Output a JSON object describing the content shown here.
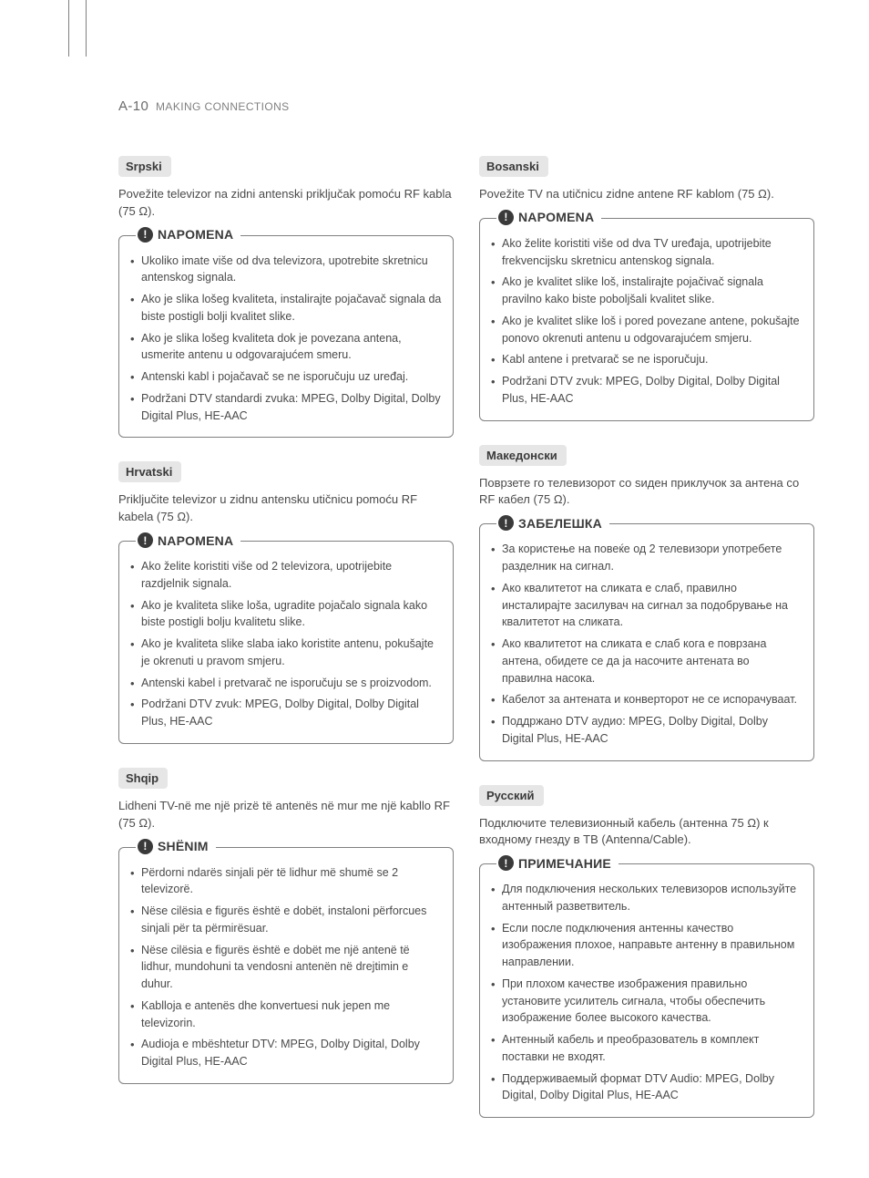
{
  "header": {
    "page_num": "A-10",
    "title": "MAKING CONNECTIONS"
  },
  "left": [
    {
      "lang": "Srpski",
      "intro": "Povežite televizor na zidni antenski priključak pomoću RF kabla (75 Ω).",
      "note_title": "NAPOMENA",
      "items": [
        "Ukoliko imate više od dva televizora, upotrebite skretnicu antenskog signala.",
        "Ako je slika lošeg kvaliteta, instalirajte pojačavač signala da biste postigli bolji kvalitet slike.",
        "Ako je slika lošeg kvaliteta dok je povezana antena, usmerite antenu u odgovarajućem smeru.",
        "Antenski kabl i pojačavač se ne isporučuju uz uređaj.",
        "Podržani DTV standardi zvuka: MPEG, Dolby Digital, Dolby Digital Plus, HE-AAC"
      ]
    },
    {
      "lang": "Hrvatski",
      "intro": "Priključite televizor u zidnu antensku utičnicu pomoću RF kabela (75 Ω).",
      "note_title": "NAPOMENA",
      "items": [
        "Ako želite koristiti više od 2 televizora, upotrijebite razdjelnik signala.",
        "Ako je kvaliteta slike loša, ugradite pojačalo signala kako biste postigli bolju kvalitetu slike.",
        "Ako je kvaliteta slike slaba iako koristite antenu, pokušajte je okrenuti u pravom smjeru.",
        "Antenski kabel i pretvarač ne isporučuju se s proizvodom.",
        "Podržani DTV zvuk: MPEG, Dolby Digital, Dolby Digital Plus, HE-AAC"
      ]
    },
    {
      "lang": "Shqip",
      "intro": "Lidheni TV-në me një prizë të antenës në mur me një kabllo RF (75 Ω).",
      "note_title": "SHËNIM",
      "items": [
        "Përdorni ndarës sinjali për të lidhur më shumë se 2 televizorë.",
        "Nëse cilësia e figurës është e dobët, instaloni përforcues sinjali për ta përmirësuar.",
        "Nëse cilësia e figurës është e dobët me një antenë të lidhur, mundohuni ta vendosni antenën në drejtimin e duhur.",
        "Kablloja e antenës dhe konvertuesi nuk jepen me televizorin.",
        "Audioja e mbështetur DTV: MPEG, Dolby Digital, Dolby Digital Plus, HE-AAC"
      ]
    }
  ],
  "right": [
    {
      "lang": "Bosanski",
      "intro": "Povežite TV na utičnicu zidne antene RF kablom (75 Ω).",
      "note_title": "NAPOMENA",
      "items": [
        "Ako želite koristiti više od dva TV uređaja, upotrijebite frekvencijsku skretnicu antenskog signala.",
        "Ako je kvalitet slike loš, instalirajte pojačivač signala pravilno kako biste poboljšali kvalitet slike.",
        "Ako je kvalitet slike loš i pored povezane antene, pokušajte ponovo okrenuti antenu u odgovarajućem smjeru.",
        "Kabl antene i pretvarač se ne isporučuju.",
        "Podržani DTV zvuk: MPEG, Dolby Digital, Dolby Digital Plus, HE-AAC"
      ]
    },
    {
      "lang": "Македонски",
      "intro": "Поврзете го телевизорот со ѕиден приклучок за антена со RF кабел (75 Ω).",
      "note_title": "ЗАБЕЛЕШКА",
      "items": [
        "За користење на повеќе од 2 телевизори употребете разделник на сигнал.",
        "Ако квалитетот на сликата е слаб, правилно инсталирајте засилувач на сигнал за подобрување на квалитетот на сликата.",
        "Ако квалитетот на сликата е слаб кога е поврзана антена, обидете се да ја насочите антената во правилна насока.",
        "Кабелот за антената и конверторот не се испорачуваат.",
        "Поддржано DTV аудио: MPEG, Dolby Digital, Dolby Digital Plus, HE-AAC"
      ]
    },
    {
      "lang": "Русский",
      "intro": "Подключите телевизионный кабель (антенна 75 Ω) к входному гнезду в ТВ (Antenna/Cable).",
      "note_title": "ПРИМЕЧАНИЕ",
      "items": [
        "Для подключения нескольких телевизоров используйте антенный разветвитель.",
        "Если после подключения антенны качество изображения плохое, направьте антенну в правильном направлении.",
        "При плохом качестве изображения правильно установите усилитель сигнала, чтобы обеспечить изображение более высокого качества.",
        "Антенный кабель и преобразователь в комплект поставки не входят.",
        "Поддерживаемый формат DTV Audio: MPEG, Dolby Digital, Dolby Digital Plus, HE-AAC"
      ]
    }
  ]
}
